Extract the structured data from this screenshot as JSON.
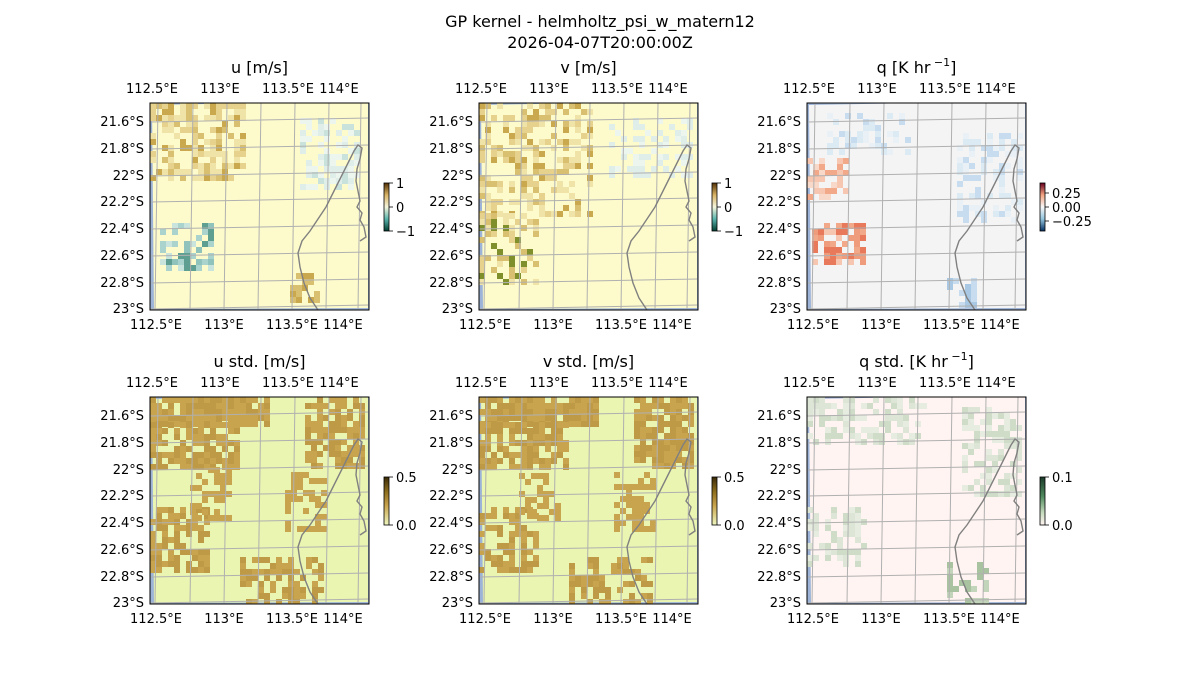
{
  "figure": {
    "title": "GP kernel - helmholtz_psi_w_matern12",
    "timestamp": "2026-04-07T20:00:00Z"
  },
  "axes": {
    "lon_ticks": [
      "112.5°E",
      "113°E",
      "113.5°E",
      "114°E"
    ],
    "lat_ticks": [
      "21.6°S",
      "21.8°S",
      "22°S",
      "22.2°S",
      "22.4°S",
      "22.6°S",
      "22.8°S",
      "23°S"
    ]
  },
  "colors": {
    "ocean": "#9db4d8",
    "grid": "#b0b0b0",
    "coast": "#808080"
  },
  "panels": [
    {
      "title": "u [m/s]",
      "colorbar_ticks": [
        "1",
        "0",
        "−1"
      ],
      "field_style": "u",
      "base_color": "#fdfbcb"
    },
    {
      "title": "v [m/s]",
      "colorbar_ticks": [
        "1",
        "0",
        "−1"
      ],
      "field_style": "v",
      "base_color": "#fdfbcb"
    },
    {
      "title": "q [K hr",
      "title_sup": "−1",
      "title_end": "]",
      "colorbar_ticks": [
        "0.25",
        "0.00",
        "−0.25"
      ],
      "field_style": "q",
      "base_color": "#f4f4f4"
    },
    {
      "title": "u std. [m/s]",
      "colorbar_ticks": [
        "0.5",
        "0.0"
      ],
      "field_style": "ustd",
      "base_color": "#e9f5b1"
    },
    {
      "title": "v std. [m/s]",
      "colorbar_ticks": [
        "0.5",
        "0.0"
      ],
      "field_style": "vstd",
      "base_color": "#e9f5b1"
    },
    {
      "title": "q std. [K hr",
      "title_sup": "−1",
      "title_end": "]",
      "colorbar_ticks": [
        "0.1",
        "0.0"
      ],
      "field_style": "qstd",
      "base_color": "#fff4f1"
    }
  ]
}
